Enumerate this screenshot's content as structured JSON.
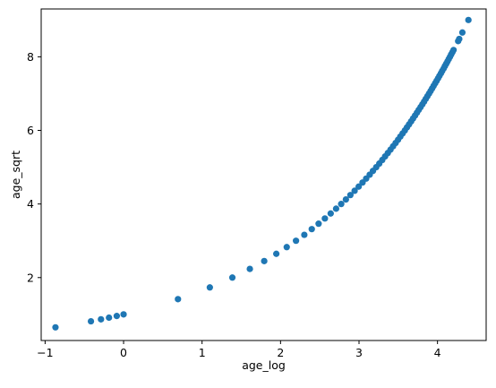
{
  "chart_data": {
    "type": "scatter",
    "xlabel": "age_log",
    "ylabel": "age_sqrt",
    "xlim": [
      -1.05,
      4.62
    ],
    "ylim": [
      0.29,
      9.3
    ],
    "xticks": [
      -1,
      0,
      1,
      2,
      3,
      4
    ],
    "yticks": [
      2,
      4,
      6,
      8
    ],
    "grid": false,
    "marker_color": "#1f77b4",
    "series": [
      {
        "function": "y = sqrt(exp(x))",
        "x": [
          -0.868,
          -0.416,
          -0.288,
          -0.186,
          -0.087,
          0.0,
          0.693,
          1.099,
          1.386,
          1.609,
          1.792,
          1.946,
          2.079,
          2.197,
          2.303,
          2.398,
          2.485,
          2.565,
          2.639,
          2.708,
          2.773,
          2.833,
          2.89,
          2.944,
          2.996,
          3.045,
          3.091,
          3.136,
          3.178,
          3.219,
          3.258,
          3.296,
          3.332,
          3.367,
          3.401,
          3.434,
          3.466,
          3.497,
          3.526,
          3.555,
          3.584,
          3.611,
          3.638,
          3.664,
          3.689,
          3.714,
          3.738,
          3.761,
          3.784,
          3.807,
          3.829,
          3.85,
          3.871,
          3.892,
          3.912,
          3.932,
          3.951,
          3.97,
          3.989,
          4.007,
          4.025,
          4.043,
          4.06,
          4.078,
          4.094,
          4.111,
          4.127,
          4.143,
          4.159,
          4.174,
          4.19,
          4.205,
          4.263,
          4.277,
          4.317,
          4.394
        ],
        "y": [
          0.648,
          0.812,
          0.866,
          0.911,
          0.957,
          1.0,
          1.414,
          1.732,
          2.0,
          2.236,
          2.449,
          2.646,
          2.828,
          3.0,
          3.162,
          3.317,
          3.464,
          3.606,
          3.742,
          3.873,
          4.0,
          4.123,
          4.243,
          4.359,
          4.472,
          4.583,
          4.69,
          4.796,
          4.899,
          5.0,
          5.099,
          5.196,
          5.292,
          5.385,
          5.477,
          5.568,
          5.657,
          5.745,
          5.831,
          5.916,
          6.0,
          6.083,
          6.164,
          6.245,
          6.325,
          6.403,
          6.481,
          6.557,
          6.633,
          6.708,
          6.782,
          6.856,
          6.928,
          7.0,
          7.071,
          7.141,
          7.211,
          7.28,
          7.348,
          7.416,
          7.483,
          7.55,
          7.616,
          7.681,
          7.746,
          7.81,
          7.874,
          7.937,
          8.0,
          8.062,
          8.124,
          8.185,
          8.426,
          8.485,
          8.66,
          9.0
        ]
      }
    ]
  }
}
